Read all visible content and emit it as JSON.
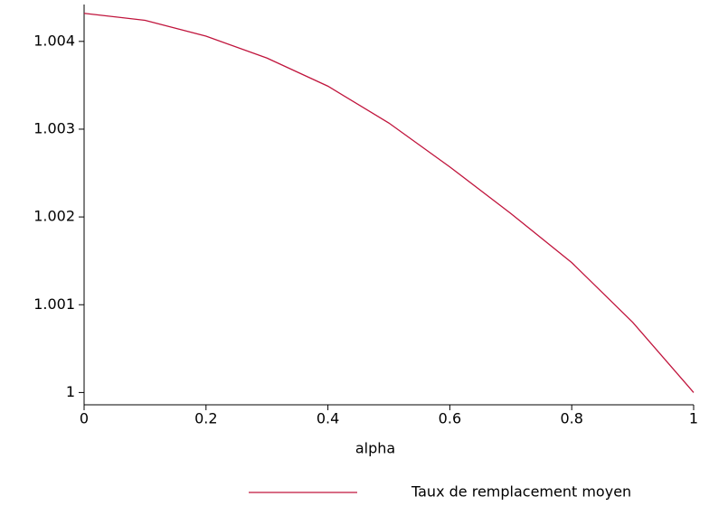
{
  "chart_data": {
    "type": "line",
    "x_label": "alpha",
    "x": [
      0,
      0.1,
      0.2,
      0.3,
      0.4,
      0.5,
      0.6,
      0.7,
      0.8,
      0.9,
      1
    ],
    "series": [
      {
        "name": "Taux de remplacement moyen",
        "color": "#c0143c",
        "values": [
          1.00432,
          1.00424,
          1.00406,
          1.00381,
          1.00349,
          1.00307,
          1.00257,
          1.00204,
          1.00148,
          1.0008,
          1.0
        ]
      }
    ],
    "xlim": [
      0,
      1
    ],
    "xticks": [
      0,
      0.2,
      0.4,
      0.6,
      0.8,
      1
    ],
    "ylim": [
      0.99986,
      1.00442
    ],
    "yticks": [
      1,
      1.001,
      1.002,
      1.003,
      1.004
    ]
  }
}
